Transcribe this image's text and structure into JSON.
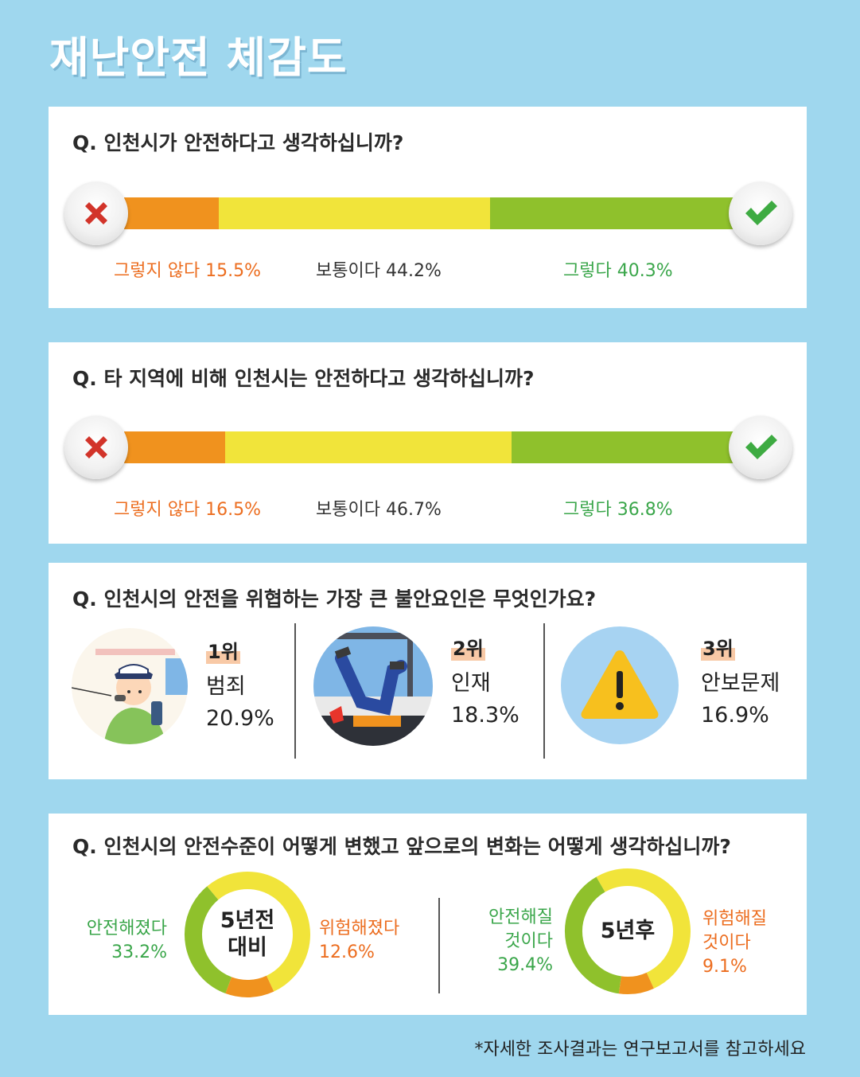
{
  "title": "재난안전 체감도",
  "colors": {
    "no": "#f0921e",
    "normal": "#f1e43a",
    "yes": "#8fc12c",
    "red_x": "#d2342a",
    "check": "#3eab42"
  },
  "q1": {
    "question": "Q. 인천시가 안전하다고 생각하십니까?",
    "no_label": "그렇지 않다 15.5%",
    "normal_label": "보통이다 44.2%",
    "yes_label": "그렇다 40.3%"
  },
  "q2": {
    "question": "Q. 타 지역에 비해 인천시는 안전하다고 생각하십니까?",
    "no_label": "그렇지 않다 16.5%",
    "normal_label": "보통이다 46.7%",
    "yes_label": "그렇다 36.8%"
  },
  "q3": {
    "question": "Q. 인천시의 안전을 위협하는 가장 큰 불안요인은 무엇인가요?",
    "items": [
      {
        "rank": "1위",
        "name": "범죄",
        "value": "20.9%",
        "icon": "police-officer-icon"
      },
      {
        "rank": "2위",
        "name": "인재",
        "value": "18.3%",
        "icon": "falling-person-icon"
      },
      {
        "rank": "3위",
        "name": "안보문제",
        "value": "16.9%",
        "icon": "warning-icon"
      }
    ]
  },
  "q4": {
    "question": "Q. 인천시의 안전수준이 어떻게 변했고 앞으로의 변화는 어떻게 생각하십니까?",
    "left": {
      "center_line1": "5년전",
      "center_line2": "대비",
      "safe_label": "안전해졌다",
      "safe_value": "33.2%",
      "danger_label": "위험해졌다",
      "danger_value": "12.6%"
    },
    "right": {
      "center_line1": "5년후",
      "safe_line1": "안전해질",
      "safe_line2": "것이다",
      "safe_value": "39.4%",
      "danger_line1": "위험해질",
      "danger_line2": "것이다",
      "danger_value": "9.1%"
    }
  },
  "footnote": "*자세한 조사결과는 연구보고서를 참고하세요",
  "chart_data": [
    {
      "type": "bar",
      "stacked": true,
      "categories": [
        "그렇지 않다",
        "보통이다",
        "그렇다"
      ],
      "values": [
        15.5,
        44.2,
        40.3
      ]
    },
    {
      "type": "bar",
      "stacked": true,
      "categories": [
        "그렇지 않다",
        "보통이다",
        "그렇다"
      ],
      "values": [
        16.5,
        46.7,
        36.8
      ]
    },
    {
      "type": "bar",
      "categories": [
        "범죄",
        "인재",
        "안보문제"
      ],
      "values": [
        20.9,
        18.3,
        16.9
      ]
    },
    {
      "type": "pie",
      "donut": true,
      "categories": [
        "안전해졌다",
        "위험해졌다"
      ],
      "values": [
        33.2,
        12.6
      ]
    },
    {
      "type": "pie",
      "donut": true,
      "categories": [
        "안전해질 것이다",
        "위험해질 것이다"
      ],
      "values": [
        39.4,
        9.1
      ]
    }
  ]
}
